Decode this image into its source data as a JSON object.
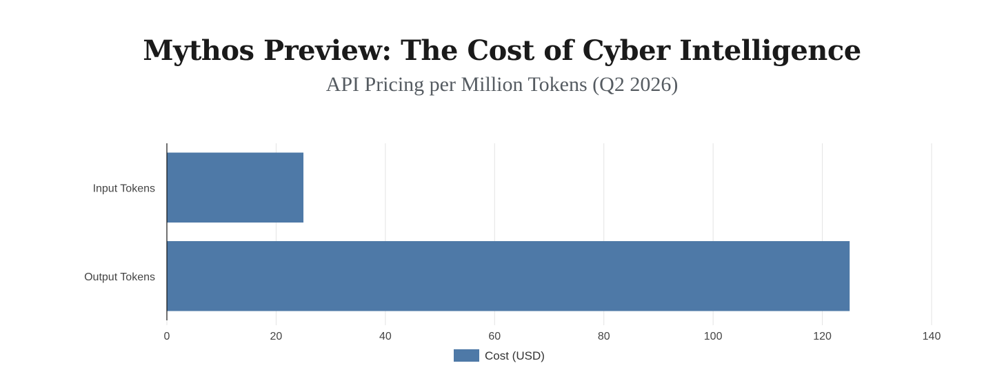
{
  "chart_data": {
    "type": "bar",
    "orientation": "horizontal",
    "title": "Mythos Preview: The Cost of Cyber Intelligence",
    "subtitle": "API Pricing per Million Tokens (Q2 2026)",
    "categories": [
      "Input Tokens",
      "Output Tokens"
    ],
    "series": [
      {
        "name": "Cost (USD)",
        "values": [
          25,
          125
        ],
        "color": "#4e79a7"
      }
    ],
    "xlim": [
      0,
      140
    ],
    "xticks": [
      0,
      20,
      40,
      60,
      80,
      100,
      120,
      140
    ],
    "xlabel": "",
    "ylabel": "",
    "grid": true,
    "legend_position": "bottom-center"
  }
}
